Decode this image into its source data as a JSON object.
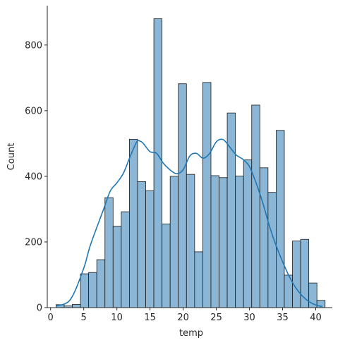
{
  "chart_data": {
    "type": "bar",
    "xlabel": "temp",
    "ylabel": "Count",
    "xlim": [
      -0.5,
      42.5
    ],
    "ylim": [
      0,
      920
    ],
    "xticks": [
      0,
      5,
      10,
      15,
      20,
      25,
      30,
      35,
      40
    ],
    "yticks": [
      0,
      200,
      400,
      600,
      800
    ],
    "grid": false,
    "legend": "none",
    "colors": {
      "bar_fill": "#8bb6d6",
      "bar_edge": "#1a1a1a",
      "kde_line": "#1f77b4",
      "axis": "#262626"
    },
    "bins": [
      {
        "x0": 0.82,
        "x1": 2.05,
        "count": 9
      },
      {
        "x0": 2.05,
        "x1": 3.28,
        "count": 5
      },
      {
        "x0": 3.28,
        "x1": 4.51,
        "count": 10
      },
      {
        "x0": 4.51,
        "x1": 5.74,
        "count": 103
      },
      {
        "x0": 5.74,
        "x1": 6.97,
        "count": 107
      },
      {
        "x0": 6.97,
        "x1": 8.2,
        "count": 146
      },
      {
        "x0": 8.2,
        "x1": 9.43,
        "count": 335
      },
      {
        "x0": 9.43,
        "x1": 10.66,
        "count": 248
      },
      {
        "x0": 10.66,
        "x1": 11.89,
        "count": 292
      },
      {
        "x0": 11.89,
        "x1": 13.12,
        "count": 513
      },
      {
        "x0": 13.12,
        "x1": 14.35,
        "count": 384
      },
      {
        "x0": 14.35,
        "x1": 15.58,
        "count": 356
      },
      {
        "x0": 15.58,
        "x1": 16.81,
        "count": 880
      },
      {
        "x0": 16.81,
        "x1": 18.04,
        "count": 255
      },
      {
        "x0": 18.04,
        "x1": 19.27,
        "count": 400
      },
      {
        "x0": 19.27,
        "x1": 20.5,
        "count": 682
      },
      {
        "x0": 20.5,
        "x1": 21.73,
        "count": 406
      },
      {
        "x0": 21.73,
        "x1": 22.96,
        "count": 170
      },
      {
        "x0": 22.96,
        "x1": 24.19,
        "count": 686
      },
      {
        "x0": 24.19,
        "x1": 25.42,
        "count": 402
      },
      {
        "x0": 25.42,
        "x1": 26.65,
        "count": 396
      },
      {
        "x0": 26.65,
        "x1": 27.88,
        "count": 593
      },
      {
        "x0": 27.88,
        "x1": 29.11,
        "count": 401
      },
      {
        "x0": 29.11,
        "x1": 30.34,
        "count": 450
      },
      {
        "x0": 30.34,
        "x1": 31.57,
        "count": 617
      },
      {
        "x0": 31.57,
        "x1": 32.8,
        "count": 426
      },
      {
        "x0": 32.8,
        "x1": 34.03,
        "count": 351
      },
      {
        "x0": 34.03,
        "x1": 35.26,
        "count": 540
      },
      {
        "x0": 35.26,
        "x1": 36.49,
        "count": 99
      },
      {
        "x0": 36.49,
        "x1": 37.72,
        "count": 203
      },
      {
        "x0": 37.72,
        "x1": 38.95,
        "count": 208
      },
      {
        "x0": 38.95,
        "x1": 40.18,
        "count": 75
      },
      {
        "x0": 40.18,
        "x1": 41.41,
        "count": 22
      }
    ],
    "kde": {
      "x": [
        0.82,
        3,
        5,
        6,
        8,
        9,
        10,
        11,
        12,
        13,
        13.5,
        14,
        15,
        16,
        17,
        18,
        19,
        20,
        21,
        22,
        23,
        24,
        25,
        26,
        27,
        28,
        29,
        30,
        31,
        32,
        33,
        34,
        35,
        36,
        37,
        38,
        39,
        40,
        41
      ],
      "y": [
        5,
        25,
        120,
        190,
        300,
        355,
        380,
        410,
        460,
        505,
        507,
        500,
        475,
        470,
        440,
        420,
        408,
        420,
        462,
        470,
        455,
        470,
        505,
        512,
        490,
        465,
        452,
        430,
        380,
        320,
        250,
        190,
        140,
        95,
        60,
        35,
        18,
        8,
        3
      ]
    }
  }
}
